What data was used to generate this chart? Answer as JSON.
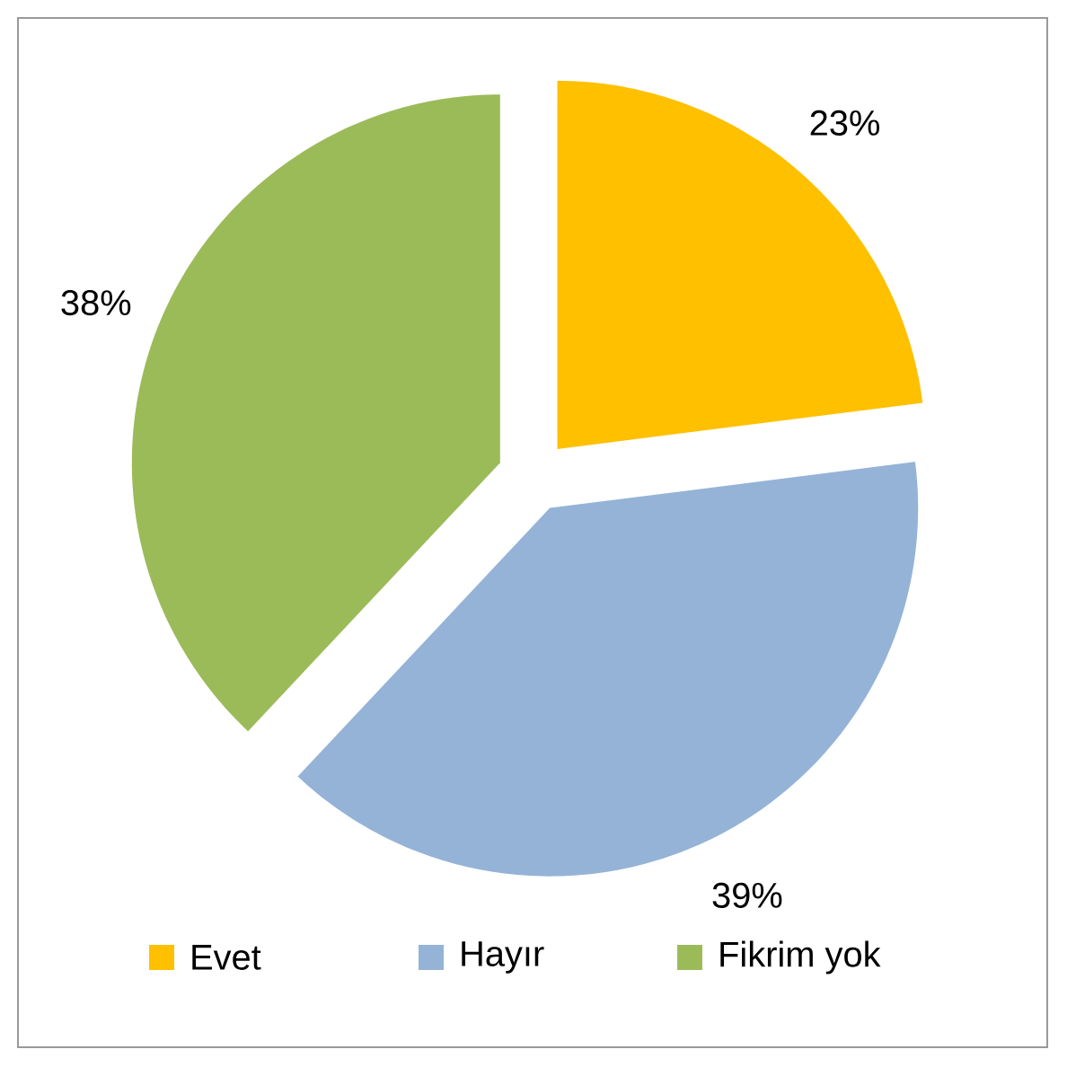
{
  "chart_data": {
    "type": "pie",
    "categories": [
      "Evet",
      "Hayır",
      "Fikrim yok"
    ],
    "values": [
      23,
      39,
      38
    ],
    "colors": [
      "#ffc000",
      "#95b3d7",
      "#9bbb59"
    ],
    "value_labels": [
      "23%",
      "39%",
      "38%"
    ],
    "legend": "bottom"
  }
}
